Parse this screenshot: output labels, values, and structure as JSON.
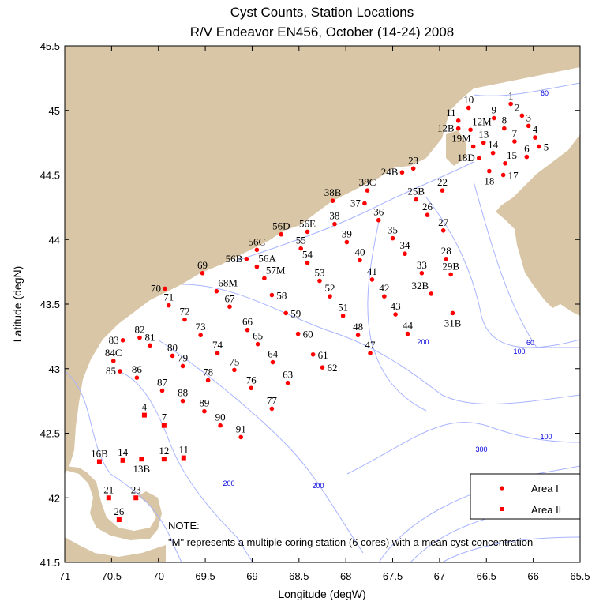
{
  "title": {
    "line1": "Cyst Counts, Station Locations",
    "line2": "R/V Endeavor EN456, October (14-24) 2008"
  },
  "axes": {
    "xlabel": "Longitude (degW)",
    "ylabel": "Latitude (degN)",
    "xlim": [
      71,
      65.5
    ],
    "ylim": [
      41.5,
      45.5
    ],
    "xticks": [
      "71",
      "70.5",
      "70",
      "69.5",
      "69",
      "68.5",
      "68",
      "67.5",
      "67",
      "66.5",
      "66",
      "65.5"
    ],
    "yticks": [
      "45.5",
      "45",
      "44.5",
      "44",
      "43.5",
      "43",
      "42.5",
      "42",
      "41.5"
    ]
  },
  "colors": {
    "land": "#d8c6a6",
    "contour": "#a8b4ff",
    "contour_label": "#0000dd",
    "station": "#ff0000"
  },
  "contour_labels": [
    "60",
    "60",
    "100",
    "100",
    "200",
    "200",
    "200",
    "300"
  ],
  "legend": {
    "area1": "Area I",
    "area2": "Area II"
  },
  "note": {
    "heading": "NOTE:",
    "text": "\"M\" represents a multiple coring station (6 cores) with a mean cyst concentration"
  },
  "stations_area1": [
    {
      "name": "1",
      "lon": 66.24,
      "lat": 45.05
    },
    {
      "name": "2",
      "lon": 66.12,
      "lat": 44.96
    },
    {
      "name": "3",
      "lon": 66.05,
      "lat": 44.88
    },
    {
      "name": "4",
      "lon": 65.98,
      "lat": 44.79
    },
    {
      "name": "5",
      "lon": 65.94,
      "lat": 44.72
    },
    {
      "name": "6",
      "lon": 66.07,
      "lat": 44.64
    },
    {
      "name": "7",
      "lon": 66.2,
      "lat": 44.76
    },
    {
      "name": "8",
      "lon": 66.31,
      "lat": 44.86
    },
    {
      "name": "9",
      "lon": 66.42,
      "lat": 44.94
    },
    {
      "name": "10",
      "lon": 66.69,
      "lat": 45.02
    },
    {
      "name": "11",
      "lon": 66.8,
      "lat": 44.92
    },
    {
      "name": "12M",
      "lon": 66.67,
      "lat": 44.85
    },
    {
      "name": "12B",
      "lon": 66.8,
      "lat": 44.86
    },
    {
      "name": "13",
      "lon": 66.53,
      "lat": 44.75
    },
    {
      "name": "19M",
      "lon": 66.64,
      "lat": 44.72
    },
    {
      "name": "14",
      "lon": 66.43,
      "lat": 44.67
    },
    {
      "name": "15",
      "lon": 66.3,
      "lat": 44.59
    },
    {
      "name": "18D",
      "lon": 66.58,
      "lat": 44.63
    },
    {
      "name": "18",
      "lon": 66.47,
      "lat": 44.53
    },
    {
      "name": "17",
      "lon": 66.32,
      "lat": 44.5
    },
    {
      "name": "22",
      "lon": 66.97,
      "lat": 44.38
    },
    {
      "name": "23",
      "lon": 67.28,
      "lat": 44.55
    },
    {
      "name": "24B",
      "lon": 67.4,
      "lat": 44.52
    },
    {
      "name": "25B",
      "lon": 67.25,
      "lat": 44.31
    },
    {
      "name": "26",
      "lon": 67.13,
      "lat": 44.19
    },
    {
      "name": "27",
      "lon": 66.96,
      "lat": 44.07
    },
    {
      "name": "28",
      "lon": 66.93,
      "lat": 43.85
    },
    {
      "name": "29B",
      "lon": 66.88,
      "lat": 43.73
    },
    {
      "name": "33",
      "lon": 67.19,
      "lat": 43.74
    },
    {
      "name": "32B",
      "lon": 67.09,
      "lat": 43.58
    },
    {
      "name": "31B",
      "lon": 66.86,
      "lat": 43.43
    },
    {
      "name": "34",
      "lon": 67.37,
      "lat": 43.89
    },
    {
      "name": "35",
      "lon": 67.5,
      "lat": 44.01
    },
    {
      "name": "36",
      "lon": 67.65,
      "lat": 44.15
    },
    {
      "name": "37",
      "lon": 67.8,
      "lat": 44.28
    },
    {
      "name": "38C",
      "lon": 67.77,
      "lat": 44.38
    },
    {
      "name": "38B",
      "lon": 68.14,
      "lat": 44.3
    },
    {
      "name": "38",
      "lon": 68.12,
      "lat": 44.12
    },
    {
      "name": "39",
      "lon": 67.99,
      "lat": 43.98
    },
    {
      "name": "40",
      "lon": 67.85,
      "lat": 43.84
    },
    {
      "name": "41",
      "lon": 67.72,
      "lat": 43.69
    },
    {
      "name": "42",
      "lon": 67.59,
      "lat": 43.56
    },
    {
      "name": "43",
      "lon": 67.47,
      "lat": 43.42
    },
    {
      "name": "44",
      "lon": 67.34,
      "lat": 43.27
    },
    {
      "name": "47",
      "lon": 67.74,
      "lat": 43.12
    },
    {
      "name": "48",
      "lon": 67.87,
      "lat": 43.26
    },
    {
      "name": "51",
      "lon": 68.03,
      "lat": 43.41
    },
    {
      "name": "52",
      "lon": 68.17,
      "lat": 43.56
    },
    {
      "name": "53",
      "lon": 68.28,
      "lat": 43.68
    },
    {
      "name": "54",
      "lon": 68.41,
      "lat": 43.82
    },
    {
      "name": "55",
      "lon": 68.48,
      "lat": 43.93
    },
    {
      "name": "56E",
      "lon": 68.41,
      "lat": 44.06
    },
    {
      "name": "56D",
      "lon": 68.69,
      "lat": 44.04
    },
    {
      "name": "56C",
      "lon": 68.95,
      "lat": 43.92
    },
    {
      "name": "56B",
      "lon": 69.06,
      "lat": 43.85
    },
    {
      "name": "56A",
      "lon": 68.95,
      "lat": 43.79
    },
    {
      "name": "57M",
      "lon": 68.87,
      "lat": 43.7
    },
    {
      "name": "58",
      "lon": 68.79,
      "lat": 43.57
    },
    {
      "name": "59",
      "lon": 68.64,
      "lat": 43.43
    },
    {
      "name": "60",
      "lon": 68.51,
      "lat": 43.27
    },
    {
      "name": "61",
      "lon": 68.35,
      "lat": 43.11
    },
    {
      "name": "62",
      "lon": 68.25,
      "lat": 43.01
    },
    {
      "name": "63",
      "lon": 68.62,
      "lat": 42.89
    },
    {
      "name": "64",
      "lon": 68.78,
      "lat": 43.05
    },
    {
      "name": "65",
      "lon": 68.94,
      "lat": 43.19
    },
    {
      "name": "66",
      "lon": 69.05,
      "lat": 43.3
    },
    {
      "name": "67",
      "lon": 69.24,
      "lat": 43.48
    },
    {
      "name": "68M",
      "lon": 69.38,
      "lat": 43.6
    },
    {
      "name": "69",
      "lon": 69.53,
      "lat": 43.74
    },
    {
      "name": "70",
      "lon": 69.93,
      "lat": 43.62
    },
    {
      "name": "71",
      "lon": 69.89,
      "lat": 43.49
    },
    {
      "name": "72",
      "lon": 69.72,
      "lat": 43.38
    },
    {
      "name": "73",
      "lon": 69.55,
      "lat": 43.26
    },
    {
      "name": "74",
      "lon": 69.37,
      "lat": 43.12
    },
    {
      "name": "75",
      "lon": 69.19,
      "lat": 42.99
    },
    {
      "name": "76",
      "lon": 69.01,
      "lat": 42.85
    },
    {
      "name": "77",
      "lon": 68.79,
      "lat": 42.69
    },
    {
      "name": "78",
      "lon": 69.47,
      "lat": 42.91
    },
    {
      "name": "79",
      "lon": 69.74,
      "lat": 43.02
    },
    {
      "name": "80",
      "lon": 69.85,
      "lat": 43.1
    },
    {
      "name": "81",
      "lon": 70.09,
      "lat": 43.18
    },
    {
      "name": "82",
      "lon": 70.2,
      "lat": 43.24
    },
    {
      "name": "83",
      "lon": 70.38,
      "lat": 43.22
    },
    {
      "name": "84C",
      "lon": 70.48,
      "lat": 43.06
    },
    {
      "name": "85",
      "lon": 70.41,
      "lat": 42.98
    },
    {
      "name": "86",
      "lon": 70.23,
      "lat": 42.93
    },
    {
      "name": "87",
      "lon": 69.96,
      "lat": 42.83
    },
    {
      "name": "88",
      "lon": 69.74,
      "lat": 42.75
    },
    {
      "name": "89",
      "lon": 69.51,
      "lat": 42.67
    },
    {
      "name": "90",
      "lon": 69.34,
      "lat": 42.56
    },
    {
      "name": "91",
      "lon": 69.12,
      "lat": 42.47
    }
  ],
  "stations_area2": [
    {
      "name": "4",
      "lon": 70.15,
      "lat": 42.64
    },
    {
      "name": "7",
      "lon": 69.94,
      "lat": 42.56
    },
    {
      "name": "11",
      "lon": 69.73,
      "lat": 42.31
    },
    {
      "name": "12",
      "lon": 69.94,
      "lat": 42.3
    },
    {
      "name": "13B",
      "lon": 70.18,
      "lat": 42.3
    },
    {
      "name": "14",
      "lon": 70.38,
      "lat": 42.29
    },
    {
      "name": "16B",
      "lon": 70.63,
      "lat": 42.28
    },
    {
      "name": "21",
      "lon": 70.53,
      "lat": 42.0
    },
    {
      "name": "23",
      "lon": 70.24,
      "lat": 42.0
    },
    {
      "name": "26",
      "lon": 70.42,
      "lat": 41.83
    }
  ]
}
